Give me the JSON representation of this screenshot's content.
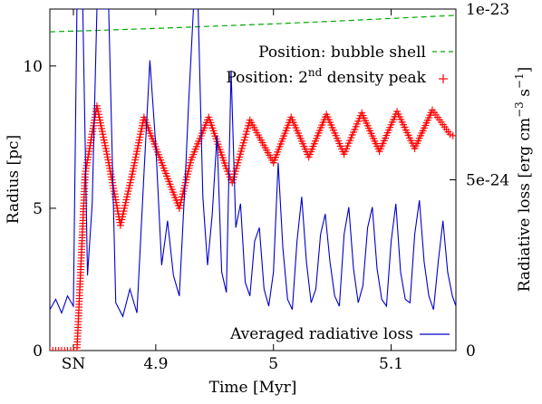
{
  "chart_data": {
    "type": "line",
    "xlabel": "Time [Myr]",
    "ylabel_left": "Radius [pc]",
    "ylabel_right": "Radiative loss [erg cm^-3 s^-1]",
    "xlim": [
      4.81,
      5.155
    ],
    "ylim_left": [
      0,
      12
    ],
    "ylim_right": [
      0,
      1e-23
    ],
    "x_ticks": [
      {
        "value": 4.83,
        "label": "SN"
      },
      {
        "value": 4.9,
        "label": "4.9"
      },
      {
        "value": 5.0,
        "label": "5"
      },
      {
        "value": 5.1,
        "label": "5.1"
      }
    ],
    "y_left_ticks": [
      {
        "value": 0,
        "label": "0"
      },
      {
        "value": 5,
        "label": "5"
      },
      {
        "value": 10,
        "label": "10"
      }
    ],
    "y_right_ticks": [
      {
        "value": 0,
        "label": "0"
      },
      {
        "value": 5e-24,
        "label": "5e-24"
      },
      {
        "value": 1e-23,
        "label": "1e-23"
      }
    ],
    "legend_placement": "top-right / bottom-right",
    "series": [
      {
        "name": "Position: bubble shell",
        "axis": "left",
        "style": "dashed",
        "color": "#00aa00",
        "x": [
          4.81,
          4.85,
          4.9,
          4.95,
          5.0,
          5.05,
          5.1,
          5.155
        ],
        "y": [
          11.2,
          11.25,
          11.32,
          11.4,
          11.48,
          11.57,
          11.67,
          11.78
        ]
      },
      {
        "name": "Position: 2nd density peak",
        "axis": "left",
        "style": "plus-markers",
        "color": "#ff0000",
        "x": [
          4.81,
          4.825,
          4.833,
          4.84,
          4.85,
          4.86,
          4.87,
          4.88,
          4.89,
          4.905,
          4.92,
          4.93,
          4.945,
          4.96,
          4.965,
          4.98,
          5.0,
          5.015,
          5.03,
          5.045,
          5.06,
          5.075,
          5.09,
          5.105,
          5.12,
          5.135,
          5.15,
          5.155
        ],
        "y": [
          0,
          0,
          0,
          6.2,
          8.6,
          6.6,
          4.4,
          6.2,
          8.2,
          6.6,
          5.0,
          6.7,
          8.2,
          6.4,
          5.9,
          8.1,
          6.6,
          8.2,
          6.8,
          8.3,
          6.9,
          8.35,
          7.0,
          8.4,
          7.1,
          8.45,
          7.6,
          7.5
        ]
      },
      {
        "name": "Averaged radiative loss",
        "axis": "right",
        "style": "solid",
        "color": "#0000cc",
        "x": [
          4.81,
          4.815,
          4.82,
          4.825,
          4.83,
          4.833,
          4.835,
          4.838,
          4.842,
          4.846,
          4.85,
          4.855,
          4.86,
          4.866,
          4.872,
          4.878,
          4.884,
          4.89,
          4.895,
          4.9,
          4.905,
          4.91,
          4.915,
          4.92,
          4.925,
          4.928,
          4.932,
          4.936,
          4.94,
          4.944,
          4.948,
          4.952,
          4.956,
          4.96,
          4.964,
          4.968,
          4.972,
          4.976,
          4.98,
          4.984,
          4.988,
          4.992,
          4.996,
          5.0,
          5.004,
          5.008,
          5.012,
          5.016,
          5.02,
          5.024,
          5.028,
          5.032,
          5.036,
          5.04,
          5.044,
          5.048,
          5.052,
          5.056,
          5.06,
          5.064,
          5.068,
          5.072,
          5.076,
          5.08,
          5.084,
          5.088,
          5.092,
          5.096,
          5.1,
          5.104,
          5.108,
          5.112,
          5.116,
          5.12,
          5.124,
          5.128,
          5.132,
          5.136,
          5.14,
          5.144,
          5.148,
          5.152,
          5.155
        ],
        "y": [
          1.2e-24,
          1.5e-24,
          1.1e-24,
          1.6e-24,
          1.3e-24,
          1e-23,
          1e-23,
          1e-23,
          2.2e-24,
          4.3e-24,
          1e-23,
          1e-23,
          1e-23,
          1.4e-24,
          1e-24,
          1.8e-24,
          1.1e-24,
          5.2e-24,
          8.5e-24,
          6e-24,
          2.5e-24,
          3.8e-24,
          2.2e-24,
          1.6e-24,
          5e-24,
          7.3e-24,
          1e-23,
          1e-23,
          4.5e-24,
          2.5e-24,
          4e-24,
          6.3e-24,
          2.3e-24,
          1.7e-24,
          8.2e-24,
          3.6e-24,
          4.3e-24,
          2e-24,
          1.6e-24,
          3.2e-24,
          3.6e-24,
          1.8e-24,
          1.3e-24,
          2.3e-24,
          5.5e-24,
          3e-24,
          1.5e-24,
          1.2e-24,
          3.2e-24,
          4.5e-24,
          2.6e-24,
          1.4e-24,
          1.8e-24,
          3.4e-24,
          4e-24,
          2.6e-24,
          1.6e-24,
          1.3e-24,
          3.4e-24,
          4.2e-24,
          2.4e-24,
          1.4e-24,
          1.9e-24,
          3.6e-24,
          4.2e-24,
          2.4e-24,
          1.5e-24,
          1.3e-24,
          3.2e-24,
          4.3e-24,
          2.3e-24,
          1.5e-24,
          1.4e-24,
          3.4e-24,
          4.4e-24,
          2.6e-24,
          1.6e-24,
          1.2e-24,
          2.6e-24,
          3.8e-24,
          2.3e-24,
          1.6e-24,
          1.3e-24
        ]
      }
    ],
    "legend": {
      "bubble_shell_prefix": "Position: bubble shell",
      "density_peak_prefix": "Position: 2",
      "density_peak_sup": "nd",
      "density_peak_suffix": " density peak",
      "radiative_loss": "Averaged radiative loss"
    },
    "right_label_parts": {
      "main": "Radiative loss [erg cm",
      "sup1": "−3",
      "mid": " s",
      "sup2": "−1",
      "end": "]"
    }
  }
}
